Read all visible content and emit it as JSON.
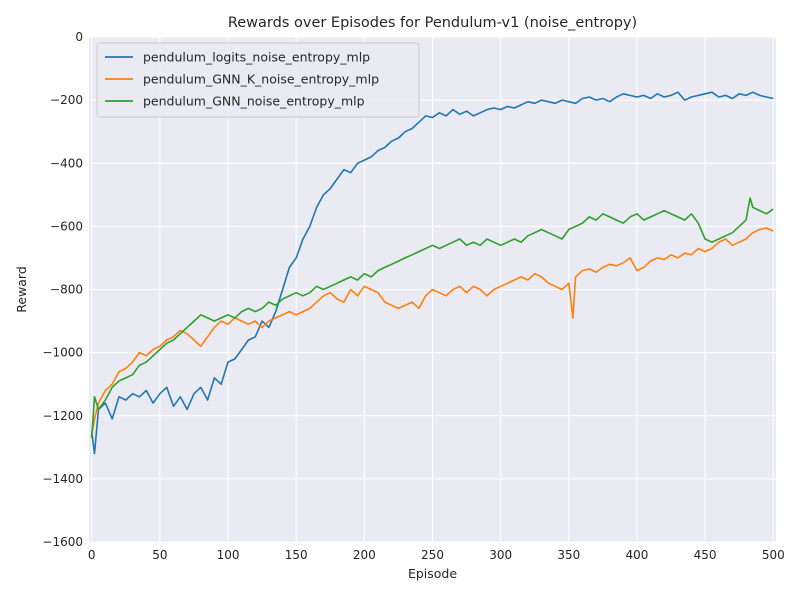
{
  "chart_data": {
    "type": "line",
    "title": "Rewards over Episodes for Pendulum-v1 (noise_entropy)",
    "xlabel": "Episode",
    "ylabel": "Reward",
    "xlim": [
      -2,
      502
    ],
    "ylim": [
      -1600,
      0
    ],
    "xticks": [
      0,
      50,
      100,
      150,
      200,
      250,
      300,
      350,
      400,
      450,
      500
    ],
    "yticks": [
      -1600,
      -1400,
      -1200,
      -1000,
      -800,
      -600,
      -400,
      -200,
      0
    ],
    "ytick_labels": [
      "−1600",
      "−1400",
      "−1200",
      "−1000",
      "−800",
      "−600",
      "−400",
      "−200",
      "0"
    ],
    "grid": true,
    "legend_position": "top-left",
    "background": "#eaeaf2",
    "series": [
      {
        "name": "pendulum_logits_noise_entropy_mlp",
        "color": "#1f77b4",
        "x": [
          0,
          2,
          5,
          10,
          15,
          20,
          25,
          30,
          35,
          40,
          45,
          50,
          55,
          60,
          65,
          70,
          75,
          80,
          85,
          90,
          95,
          100,
          105,
          110,
          115,
          120,
          125,
          130,
          135,
          140,
          145,
          150,
          155,
          160,
          165,
          170,
          175,
          180,
          185,
          190,
          195,
          200,
          205,
          210,
          215,
          220,
          225,
          230,
          235,
          240,
          245,
          250,
          255,
          260,
          265,
          270,
          275,
          280,
          285,
          290,
          295,
          300,
          305,
          310,
          315,
          320,
          325,
          330,
          335,
          340,
          345,
          350,
          355,
          360,
          365,
          370,
          375,
          380,
          385,
          390,
          395,
          400,
          405,
          410,
          415,
          420,
          425,
          430,
          435,
          440,
          445,
          450,
          455,
          460,
          465,
          470,
          475,
          480,
          485,
          490,
          495,
          500
        ],
        "y": [
          -1250,
          -1320,
          -1180,
          -1160,
          -1210,
          -1140,
          -1150,
          -1130,
          -1140,
          -1120,
          -1160,
          -1130,
          -1110,
          -1170,
          -1140,
          -1180,
          -1130,
          -1110,
          -1150,
          -1080,
          -1100,
          -1030,
          -1020,
          -990,
          -960,
          -950,
          -900,
          -920,
          -870,
          -800,
          -730,
          -700,
          -640,
          -600,
          -540,
          -500,
          -480,
          -450,
          -420,
          -430,
          -400,
          -390,
          -380,
          -360,
          -350,
          -330,
          -320,
          -300,
          -290,
          -270,
          -250,
          -255,
          -240,
          -250,
          -230,
          -245,
          -235,
          -250,
          -240,
          -230,
          -225,
          -230,
          -220,
          -225,
          -215,
          -205,
          -210,
          -200,
          -205,
          -210,
          -200,
          -205,
          -210,
          -195,
          -190,
          -200,
          -195,
          -205,
          -190,
          -180,
          -185,
          -190,
          -185,
          -195,
          -180,
          -190,
          -185,
          -175,
          -200,
          -190,
          -185,
          -180,
          -175,
          -190,
          -185,
          -195,
          -180,
          -185,
          -175,
          -185,
          -190,
          -195
        ]
      },
      {
        "name": "pendulum_GNN_K_noise_entropy_mlp",
        "color": "#ff7f0e",
        "x": [
          0,
          2,
          5,
          10,
          15,
          20,
          25,
          30,
          35,
          40,
          45,
          50,
          55,
          60,
          65,
          70,
          75,
          80,
          85,
          90,
          95,
          100,
          105,
          110,
          115,
          120,
          125,
          130,
          135,
          140,
          145,
          150,
          155,
          160,
          165,
          170,
          175,
          180,
          185,
          190,
          195,
          200,
          205,
          210,
          215,
          220,
          225,
          230,
          235,
          240,
          245,
          250,
          255,
          260,
          265,
          270,
          275,
          280,
          285,
          290,
          295,
          300,
          305,
          310,
          315,
          320,
          325,
          330,
          335,
          340,
          345,
          350,
          353,
          355,
          360,
          365,
          370,
          375,
          380,
          385,
          390,
          395,
          400,
          405,
          410,
          415,
          420,
          425,
          430,
          435,
          440,
          445,
          450,
          455,
          460,
          465,
          470,
          475,
          480,
          485,
          490,
          495,
          500
        ],
        "y": [
          -1260,
          -1210,
          -1160,
          -1120,
          -1100,
          -1060,
          -1050,
          -1030,
          -1000,
          -1010,
          -990,
          -980,
          -960,
          -950,
          -930,
          -940,
          -960,
          -980,
          -950,
          -920,
          -900,
          -910,
          -890,
          -900,
          -910,
          -900,
          -920,
          -900,
          -890,
          -880,
          -870,
          -880,
          -870,
          -860,
          -840,
          -820,
          -810,
          -830,
          -840,
          -800,
          -820,
          -790,
          -800,
          -810,
          -840,
          -850,
          -860,
          -850,
          -840,
          -860,
          -820,
          -800,
          -810,
          -820,
          -800,
          -790,
          -810,
          -790,
          -800,
          -820,
          -800,
          -790,
          -780,
          -770,
          -760,
          -770,
          -750,
          -760,
          -780,
          -790,
          -800,
          -780,
          -890,
          -760,
          -740,
          -735,
          -745,
          -730,
          -720,
          -725,
          -715,
          -700,
          -740,
          -730,
          -710,
          -700,
          -705,
          -690,
          -700,
          -685,
          -690,
          -670,
          -680,
          -670,
          -650,
          -640,
          -660,
          -650,
          -640,
          -620,
          -610,
          -605,
          -615
        ]
      },
      {
        "name": "pendulum_GNN_noise_entropy_mlp",
        "color": "#2ca02c",
        "x": [
          0,
          2,
          5,
          10,
          15,
          20,
          25,
          30,
          35,
          40,
          45,
          50,
          55,
          60,
          65,
          70,
          75,
          80,
          85,
          90,
          95,
          100,
          105,
          110,
          115,
          120,
          125,
          130,
          135,
          140,
          145,
          150,
          155,
          160,
          165,
          170,
          175,
          180,
          185,
          190,
          195,
          200,
          205,
          210,
          215,
          220,
          225,
          230,
          235,
          240,
          245,
          250,
          255,
          260,
          265,
          270,
          275,
          280,
          285,
          290,
          295,
          300,
          305,
          310,
          315,
          320,
          325,
          330,
          335,
          340,
          345,
          350,
          355,
          360,
          365,
          370,
          375,
          380,
          385,
          390,
          395,
          400,
          405,
          410,
          415,
          420,
          425,
          430,
          435,
          440,
          445,
          450,
          455,
          460,
          465,
          470,
          475,
          480,
          483,
          485,
          490,
          495,
          500
        ],
        "y": [
          -1270,
          -1140,
          -1180,
          -1150,
          -1110,
          -1090,
          -1080,
          -1070,
          -1040,
          -1030,
          -1010,
          -990,
          -970,
          -960,
          -940,
          -920,
          -900,
          -880,
          -890,
          -900,
          -890,
          -880,
          -890,
          -870,
          -860,
          -870,
          -860,
          -840,
          -850,
          -830,
          -820,
          -810,
          -820,
          -810,
          -790,
          -800,
          -790,
          -780,
          -770,
          -760,
          -770,
          -750,
          -760,
          -740,
          -730,
          -720,
          -710,
          -700,
          -690,
          -680,
          -670,
          -660,
          -670,
          -660,
          -650,
          -640,
          -660,
          -650,
          -660,
          -640,
          -650,
          -660,
          -650,
          -640,
          -650,
          -630,
          -620,
          -610,
          -620,
          -630,
          -640,
          -610,
          -600,
          -590,
          -570,
          -580,
          -560,
          -570,
          -580,
          -590,
          -570,
          -560,
          -580,
          -570,
          -560,
          -550,
          -560,
          -570,
          -580,
          -560,
          -590,
          -640,
          -650,
          -640,
          -630,
          -620,
          -600,
          -580,
          -510,
          -540,
          -550,
          -560,
          -545
        ]
      }
    ]
  }
}
